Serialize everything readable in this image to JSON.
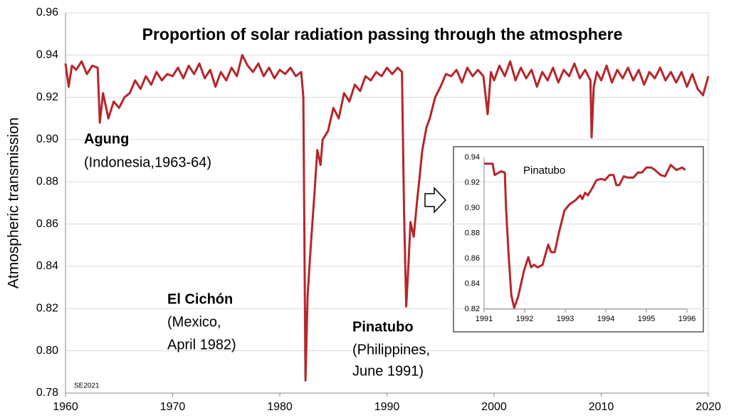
{
  "chart_data": [
    {
      "type": "line",
      "title": "Proportion of solar radiation passing through the atmosphere",
      "ylabel": "Atmospheric transmission",
      "annotations": [
        "Agung",
        "(Indonesia,1963-64)",
        "El Cichón",
        "(Mexico,",
        "April 1982)",
        "Pinatubo",
        "(Philippines,",
        "June 1991)",
        "SE2021"
      ],
      "color": "#b5262b",
      "grid": true,
      "xlim": [
        1960,
        2020
      ],
      "xticks": [
        1960,
        1970,
        1980,
        1990,
        2000,
        2010,
        2020
      ],
      "ylim": [
        0.78,
        0.96
      ],
      "yticks": [
        0.78,
        {
          "value": 0.8,
          "label": "0.80"
        },
        0.82,
        0.84,
        0.86,
        0.88,
        {
          "value": 0.9,
          "label": "0.90"
        },
        0.92,
        0.94,
        0.96
      ],
      "x": [
        1960,
        1960.3,
        1960.6,
        1961,
        1961.5,
        1962,
        1962.5,
        1963,
        1963.2,
        1963.5,
        1963.8,
        1964,
        1964.5,
        1965,
        1965.5,
        1966,
        1966.5,
        1967,
        1967.5,
        1968,
        1968.5,
        1969,
        1969.5,
        1970,
        1970.5,
        1971,
        1971.5,
        1972,
        1972.5,
        1973,
        1973.5,
        1974,
        1974.5,
        1975,
        1975.5,
        1976,
        1976.5,
        1977,
        1977.5,
        1978,
        1978.5,
        1979,
        1979.5,
        1980,
        1980.5,
        1981,
        1981.5,
        1982,
        1982.2,
        1982.4,
        1982.6,
        1982.9,
        1983.2,
        1983.5,
        1983.8,
        1984,
        1984.5,
        1985,
        1985.5,
        1986,
        1986.5,
        1987,
        1987.5,
        1988,
        1988.5,
        1989,
        1989.5,
        1990,
        1990.5,
        1991,
        1991.4,
        1991.6,
        1991.8,
        1992,
        1992.2,
        1992.5,
        1992.8,
        1993,
        1993.3,
        1993.7,
        1994,
        1994.5,
        1995,
        1995.5,
        1996,
        1996.5,
        1997,
        1997.5,
        1998,
        1998.5,
        1999,
        1999.4,
        1999.7,
        2000,
        2000.5,
        2001,
        2001.5,
        2002,
        2002.5,
        2003,
        2003.5,
        2004,
        2004.5,
        2005,
        2005.5,
        2006,
        2006.5,
        2007,
        2007.5,
        2008,
        2008.5,
        2009,
        2009.1,
        2009.3,
        2009.6,
        2010,
        2010.5,
        2011,
        2011.5,
        2012,
        2012.5,
        2013,
        2013.5,
        2014,
        2014.5,
        2015,
        2015.5,
        2016,
        2016.5,
        2017,
        2017.5,
        2018,
        2018.5,
        2019,
        2019.5,
        2020
      ],
      "values": [
        0.936,
        0.925,
        0.935,
        0.933,
        0.937,
        0.931,
        0.935,
        0.934,
        0.908,
        0.922,
        0.915,
        0.91,
        0.918,
        0.915,
        0.92,
        0.922,
        0.928,
        0.924,
        0.93,
        0.926,
        0.932,
        0.928,
        0.931,
        0.93,
        0.934,
        0.929,
        0.935,
        0.931,
        0.936,
        0.929,
        0.933,
        0.925,
        0.932,
        0.928,
        0.934,
        0.93,
        0.94,
        0.935,
        0.932,
        0.936,
        0.93,
        0.934,
        0.929,
        0.933,
        0.931,
        0.934,
        0.93,
        0.932,
        0.92,
        0.786,
        0.826,
        0.85,
        0.872,
        0.895,
        0.888,
        0.9,
        0.904,
        0.915,
        0.91,
        0.922,
        0.918,
        0.926,
        0.923,
        0.93,
        0.928,
        0.932,
        0.93,
        0.934,
        0.931,
        0.934,
        0.932,
        0.865,
        0.821,
        0.84,
        0.861,
        0.854,
        0.87,
        0.88,
        0.895,
        0.906,
        0.91,
        0.92,
        0.925,
        0.931,
        0.93,
        0.933,
        0.927,
        0.934,
        0.93,
        0.933,
        0.93,
        0.912,
        0.932,
        0.928,
        0.935,
        0.93,
        0.937,
        0.928,
        0.934,
        0.929,
        0.933,
        0.925,
        0.932,
        0.928,
        0.934,
        0.927,
        0.933,
        0.93,
        0.936,
        0.929,
        0.933,
        0.928,
        0.901,
        0.925,
        0.932,
        0.928,
        0.935,
        0.927,
        0.933,
        0.929,
        0.934,
        0.928,
        0.933,
        0.926,
        0.932,
        0.929,
        0.934,
        0.928,
        0.932,
        0.927,
        0.932,
        0.925,
        0.931,
        0.924,
        0.921,
        0.93
      ]
    },
    {
      "type": "line",
      "title": "Pinatubo",
      "color": "#b5262b",
      "grid": false,
      "xlim": [
        1991,
        1996
      ],
      "xticks": [
        1991,
        1992,
        1993,
        1994,
        1995,
        1996
      ],
      "ylim": [
        0.82,
        0.94
      ],
      "yticks": [
        0.82,
        0.84,
        0.86,
        0.88,
        {
          "value": 0.9,
          "label": "0.90"
        },
        0.92,
        0.94
      ],
      "x": [
        1991,
        1991.21,
        1991.26,
        1991.42,
        1991.51,
        1991.54,
        1991.6,
        1991.67,
        1991.74,
        1991.84,
        1991.98,
        1992.09,
        1992.16,
        1992.23,
        1992.32,
        1992.44,
        1992.58,
        1992.65,
        1992.74,
        1992.84,
        1992.98,
        1993.11,
        1993.25,
        1993.37,
        1993.42,
        1993.49,
        1993.56,
        1993.67,
        1993.77,
        1993.89,
        1993.98,
        1994.09,
        1994.19,
        1994.26,
        1994.33,
        1994.44,
        1994.54,
        1994.68,
        1994.79,
        1994.89,
        1995,
        1995.12,
        1995.21,
        1995.35,
        1995.46,
        1995.6,
        1995.74,
        1995.88,
        1995.96
      ],
      "values": [
        0.935,
        0.935,
        0.926,
        0.929,
        0.928,
        0.9,
        0.865,
        0.831,
        0.821,
        0.83,
        0.85,
        0.861,
        0.853,
        0.855,
        0.853,
        0.855,
        0.871,
        0.865,
        0.865,
        0.88,
        0.898,
        0.903,
        0.906,
        0.91,
        0.907,
        0.912,
        0.91,
        0.916,
        0.922,
        0.923,
        0.922,
        0.926,
        0.926,
        0.918,
        0.918,
        0.925,
        0.924,
        0.924,
        0.928,
        0.928,
        0.932,
        0.932,
        0.93,
        0.926,
        0.925,
        0.934,
        0.93,
        0.932,
        0.93
      ]
    }
  ]
}
